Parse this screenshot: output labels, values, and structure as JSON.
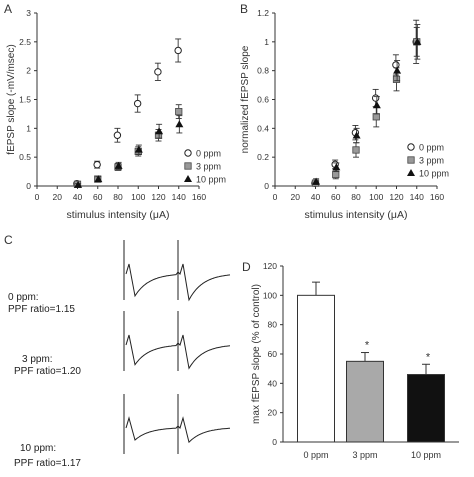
{
  "panels": [
    {
      "letter": "A"
    },
    {
      "letter": "B"
    },
    {
      "letter": "C"
    },
    {
      "letter": "D"
    }
  ],
  "chart_data": [
    {
      "panel": "A",
      "type": "scatter",
      "xlabel": "stimulus intensity (μA)",
      "ylabel": "fEPSP slope (-mV/msec)",
      "xlim": [
        0,
        160
      ],
      "ylim": [
        0,
        3
      ],
      "xticks": [
        "0",
        "20",
        "40",
        "60",
        "80",
        "100",
        "120",
        "140",
        "160"
      ],
      "yticks": [
        "0",
        "0.5",
        "1",
        "1.5",
        "2",
        "2.5",
        "3"
      ],
      "legend": {
        "placement": "right",
        "entries": [
          "0 ppm",
          "3 ppm",
          "10 ppm"
        ]
      },
      "series": [
        {
          "name": "0 ppm",
          "marker": "circle-open",
          "x": [
            40,
            60,
            80,
            100,
            120,
            140
          ],
          "y": [
            0.04,
            0.37,
            0.88,
            1.43,
            1.98,
            2.35
          ],
          "err": [
            0.03,
            0.06,
            0.12,
            0.15,
            0.15,
            0.2
          ]
        },
        {
          "name": "3 ppm",
          "marker": "square-gray",
          "x": [
            40,
            60,
            80,
            100,
            120,
            140
          ],
          "y": [
            0.03,
            0.12,
            0.33,
            0.6,
            0.88,
            1.29
          ],
          "err": [
            0.02,
            0.04,
            0.06,
            0.08,
            0.1,
            0.12
          ]
        },
        {
          "name": "10 ppm",
          "marker": "triangle-black",
          "x": [
            40,
            60,
            80,
            100,
            120,
            140
          ],
          "y": [
            0.02,
            0.12,
            0.35,
            0.63,
            0.95,
            1.07
          ],
          "err": [
            0.02,
            0.04,
            0.06,
            0.08,
            0.12,
            0.15
          ]
        }
      ]
    },
    {
      "panel": "B",
      "type": "scatter",
      "xlabel": "stimulus intensity (μA)",
      "ylabel": "normalized fEPSP slope",
      "xlim": [
        0,
        160
      ],
      "ylim": [
        0,
        1.2
      ],
      "xticks": [
        "0",
        "20",
        "40",
        "60",
        "80",
        "100",
        "120",
        "140",
        "160"
      ],
      "yticks": [
        "0",
        "0.2",
        "0.4",
        "0.6",
        "0.8",
        "1",
        "1.2"
      ],
      "legend": {
        "placement": "right",
        "entries": [
          "0 ppm",
          "3 ppm",
          "10 ppm"
        ]
      },
      "series": [
        {
          "name": "0 ppm",
          "marker": "circle-open",
          "x": [
            40,
            60,
            80,
            100,
            120,
            140
          ],
          "y": [
            0.02,
            0.15,
            0.37,
            0.61,
            0.84,
            1.0
          ],
          "err": [
            0.02,
            0.03,
            0.05,
            0.06,
            0.07,
            0.15
          ]
        },
        {
          "name": "3 ppm",
          "marker": "square-gray",
          "x": [
            40,
            60,
            80,
            100,
            120,
            140
          ],
          "y": [
            0.02,
            0.08,
            0.25,
            0.48,
            0.74,
            1.0
          ],
          "err": [
            0.02,
            0.03,
            0.05,
            0.07,
            0.08,
            0.1
          ]
        },
        {
          "name": "10 ppm",
          "marker": "triangle-black",
          "x": [
            40,
            60,
            80,
            100,
            120,
            140
          ],
          "y": [
            0.03,
            0.13,
            0.35,
            0.56,
            0.8,
            1.0
          ],
          "err": [
            0.02,
            0.03,
            0.05,
            0.06,
            0.07,
            0.12
          ]
        }
      ]
    },
    {
      "panel": "D",
      "type": "bar",
      "ylabel": "max fEPSP slope (% of control)",
      "ylim": [
        0,
        120
      ],
      "yticks": [
        "0",
        "20",
        "40",
        "60",
        "80",
        "100",
        "120"
      ],
      "categories": [
        "0 ppm",
        "3 ppm",
        "10 ppm"
      ],
      "values": [
        100,
        55,
        46
      ],
      "err": [
        9,
        6,
        7
      ],
      "significance": [
        "",
        "*",
        "*"
      ],
      "colors": [
        "#ffffff",
        "#a9a9a9",
        "#111111"
      ]
    }
  ],
  "traces": [
    {
      "line1": "0 ppm:",
      "line2": "PPF ratio=1.15"
    },
    {
      "line1": "3 ppm:",
      "line2": "PPF ratio=1.20"
    },
    {
      "line1": "10 ppm:",
      "line2": "PPF ratio=1.17"
    }
  ]
}
